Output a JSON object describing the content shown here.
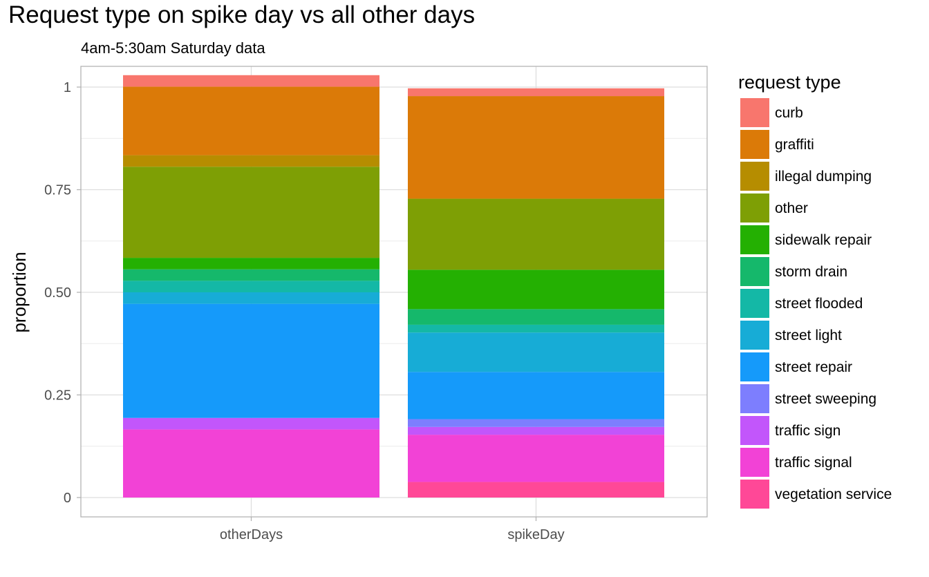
{
  "chart_data": {
    "type": "bar",
    "stacked": true,
    "title": "Request type on spike day vs all other days",
    "subtitle": "4am-5:30am Saturday data",
    "xlabel": "",
    "ylabel": "proportion",
    "ylim": [
      0,
      1
    ],
    "y_ticks": [
      {
        "value": 0,
        "label": "0"
      },
      {
        "value": 0.25,
        "label": "0.25"
      },
      {
        "value": 0.5,
        "label": "0.50"
      },
      {
        "value": 0.75,
        "label": "0.75"
      },
      {
        "value": 1,
        "label": "1"
      }
    ],
    "grid": true,
    "legend": {
      "title": "request type",
      "position": "right"
    },
    "categories": [
      "otherDays",
      "spikeDay"
    ],
    "series": [
      {
        "name": "curb",
        "color": "#F8766D",
        "values": [
          0.028,
          0.019
        ]
      },
      {
        "name": "graffiti",
        "color": "#DB7A08",
        "values": [
          0.167,
          0.25
        ]
      },
      {
        "name": "illegal dumping",
        "color": "#B68D00",
        "values": [
          0.028,
          0.0
        ]
      },
      {
        "name": "other",
        "color": "#7E9F05",
        "values": [
          0.222,
          0.173
        ]
      },
      {
        "name": "sidewalk repair",
        "color": "#24B002",
        "values": [
          0.028,
          0.096
        ]
      },
      {
        "name": "storm drain",
        "color": "#15B86B",
        "values": [
          0.028,
          0.038
        ]
      },
      {
        "name": "street flooded",
        "color": "#14B8A6",
        "values": [
          0.028,
          0.019
        ]
      },
      {
        "name": "street light",
        "color": "#17ACD6",
        "values": [
          0.028,
          0.096
        ]
      },
      {
        "name": "street repair",
        "color": "#159AFA",
        "values": [
          0.278,
          0.115
        ]
      },
      {
        "name": "street sweeping",
        "color": "#7D7EFE",
        "values": [
          0.0,
          0.019
        ]
      },
      {
        "name": "traffic sign",
        "color": "#C256FB",
        "values": [
          0.028,
          0.019
        ]
      },
      {
        "name": "traffic signal",
        "color": "#F242D6",
        "values": [
          0.166,
          0.115
        ]
      },
      {
        "name": "vegetation service",
        "color": "#FF4897",
        "values": [
          0.0,
          0.038
        ]
      }
    ]
  }
}
